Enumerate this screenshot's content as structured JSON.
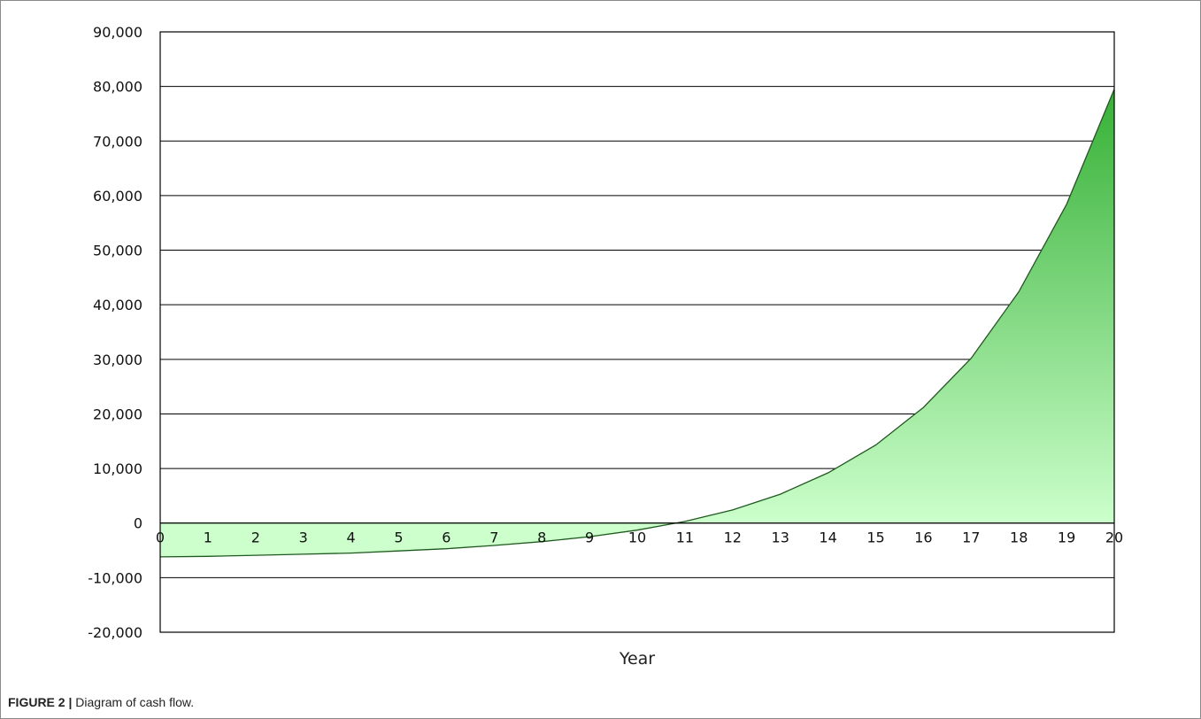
{
  "chart_data": {
    "type": "area",
    "title": "",
    "xlabel": "Year",
    "ylabel": "",
    "x": [
      0,
      1,
      2,
      3,
      4,
      5,
      6,
      7,
      8,
      9,
      10,
      11,
      12,
      13,
      14,
      15,
      16,
      17,
      18,
      19,
      20
    ],
    "values": [
      -6200,
      -6100,
      -5900,
      -5700,
      -5500,
      -5100,
      -4700,
      -4100,
      -3400,
      -2500,
      -1300,
      300,
      2400,
      5300,
      9200,
      14300,
      21200,
      30200,
      42400,
      58400,
      79500
    ],
    "xlim": [
      0,
      20
    ],
    "ylim": [
      -20000,
      90000
    ],
    "y_ticks": [
      "90,000",
      "80,000",
      "70,000",
      "60,000",
      "50,000",
      "40,000",
      "30,000",
      "20,000",
      "10,000",
      "0",
      "-10,000",
      "-20,000"
    ],
    "x_ticks": [
      "0",
      "1",
      "2",
      "3",
      "4",
      "5",
      "6",
      "7",
      "8",
      "9",
      "10",
      "11",
      "12",
      "13",
      "14",
      "15",
      "16",
      "17",
      "18",
      "19",
      "20"
    ],
    "grid": true,
    "legend": "none",
    "colors": {
      "fill_top": "#35b035",
      "fill_bottom": "#ccffcc",
      "line": "#1e5a1e",
      "grid": "#000000"
    }
  },
  "caption": {
    "figure_number": "FIGURE 2",
    "separator": "|",
    "text": "Diagram of cash flow."
  }
}
